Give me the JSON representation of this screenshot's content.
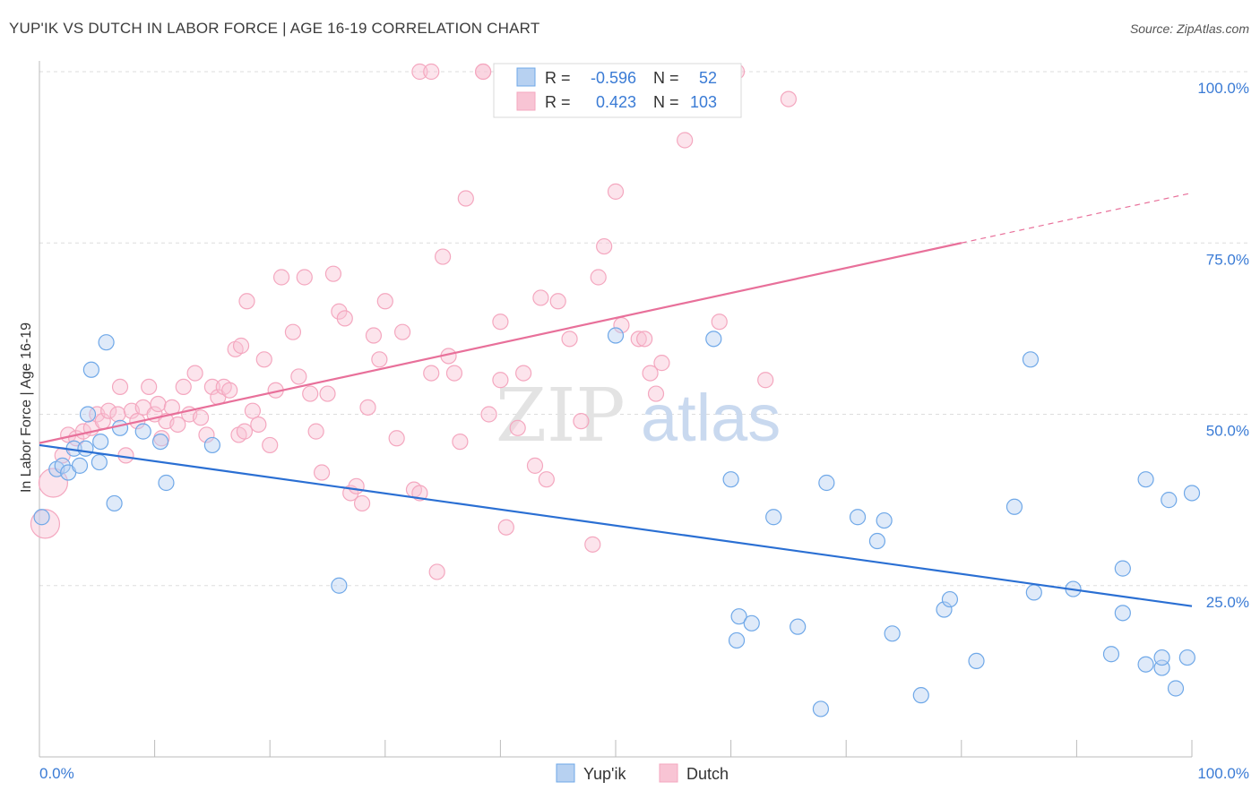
{
  "chart_data": {
    "type": "scatter",
    "title": "YUP'IK VS DUTCH IN LABOR FORCE | AGE 16-19 CORRELATION CHART",
    "source": "Source: ZipAtlas.com",
    "xlabel": "",
    "ylabel": "In Labor Force | Age 16-19",
    "xlim": [
      0,
      100
    ],
    "ylim": [
      0,
      105
    ],
    "x_tick_labels": [
      "0.0%",
      "100.0%"
    ],
    "y_ticks": [
      {
        "value": 100,
        "label": "100.0%"
      },
      {
        "value": 75,
        "label": "75.0%"
      },
      {
        "value": 50,
        "label": "50.0%"
      },
      {
        "value": 25,
        "label": "25.0%"
      }
    ],
    "watermark": {
      "zip": "ZIP",
      "atlas": "atlas"
    },
    "legend_stats": [
      {
        "r_label": "R =",
        "r_value": "-0.596",
        "n_label": "N =",
        "n_value": "52"
      },
      {
        "r_label": "R =",
        "r_value": "0.423",
        "n_label": "N =",
        "n_value": "103"
      }
    ],
    "series": [
      {
        "name": "Yup'ik",
        "color": "#6fa8e8",
        "line_color": "#2a6fd3",
        "trend": {
          "x0": 0,
          "y0": 45.5,
          "x1": 100,
          "y1": 22
        },
        "points": [
          [
            0.2,
            35
          ],
          [
            1.5,
            42
          ],
          [
            2,
            42.5
          ],
          [
            2.5,
            41.5
          ],
          [
            3,
            45
          ],
          [
            3.5,
            42.5
          ],
          [
            4,
            45
          ],
          [
            4.5,
            56.5
          ],
          [
            4.2,
            50
          ],
          [
            5.2,
            43
          ],
          [
            5.3,
            46
          ],
          [
            5.8,
            60.5
          ],
          [
            6.5,
            37
          ],
          [
            7,
            48
          ],
          [
            9,
            47.5
          ],
          [
            10.5,
            46
          ],
          [
            11,
            40
          ],
          [
            15,
            45.5
          ],
          [
            26,
            25
          ],
          [
            50,
            61.5
          ],
          [
            58.5,
            61
          ],
          [
            60,
            40.5
          ],
          [
            60.5,
            17
          ],
          [
            60.7,
            20.5
          ],
          [
            61.8,
            19.5
          ],
          [
            63.7,
            35
          ],
          [
            65.8,
            19
          ],
          [
            67.8,
            7
          ],
          [
            68.3,
            40
          ],
          [
            71,
            35
          ],
          [
            72.7,
            31.5
          ],
          [
            73.3,
            34.5
          ],
          [
            74,
            18
          ],
          [
            76.5,
            9
          ],
          [
            78.5,
            21.5
          ],
          [
            79,
            23
          ],
          [
            81.3,
            14
          ],
          [
            84.6,
            36.5
          ],
          [
            86,
            58
          ],
          [
            86.3,
            24
          ],
          [
            89.7,
            24.5
          ],
          [
            93,
            15
          ],
          [
            94,
            27.5
          ],
          [
            94,
            21
          ],
          [
            96,
            40.5
          ],
          [
            96,
            13.5
          ],
          [
            97.4,
            13
          ],
          [
            97.4,
            14.5
          ],
          [
            98,
            37.5
          ],
          [
            98.6,
            10
          ],
          [
            99.6,
            14.5
          ],
          [
            100,
            38.5
          ]
        ]
      },
      {
        "name": "Dutch",
        "color": "#f4a7bf",
        "line_color": "#e8709a",
        "trend": {
          "x0": 0,
          "y0": 45.8,
          "x1": 80,
          "y1": 75,
          "dash_x1": 100,
          "dash_y1": 82.3
        },
        "points": [
          [
            0.5,
            34
          ],
          [
            1.2,
            40
          ],
          [
            2,
            44
          ],
          [
            2.5,
            47
          ],
          [
            3.2,
            46.5
          ],
          [
            3.8,
            47.5
          ],
          [
            4.5,
            48
          ],
          [
            5,
            50
          ],
          [
            5.5,
            49
          ],
          [
            6,
            50.5
          ],
          [
            6.8,
            50
          ],
          [
            7,
            54
          ],
          [
            7.5,
            44
          ],
          [
            8,
            50.5
          ],
          [
            8.5,
            49
          ],
          [
            9,
            51
          ],
          [
            9.5,
            54
          ],
          [
            10,
            50
          ],
          [
            10.3,
            51.5
          ],
          [
            10.6,
            46.5
          ],
          [
            11,
            49
          ],
          [
            11.5,
            51
          ],
          [
            12,
            48.5
          ],
          [
            12.5,
            54
          ],
          [
            13,
            50
          ],
          [
            13.5,
            56
          ],
          [
            14,
            49.5
          ],
          [
            14.5,
            47
          ],
          [
            15,
            54
          ],
          [
            15.5,
            52.5
          ],
          [
            16,
            54
          ],
          [
            16.5,
            53.5
          ],
          [
            17,
            59.5
          ],
          [
            17.3,
            47
          ],
          [
            17.5,
            60
          ],
          [
            17.8,
            47.5
          ],
          [
            18,
            66.5
          ],
          [
            18.5,
            50.5
          ],
          [
            19,
            48.5
          ],
          [
            19.5,
            58
          ],
          [
            20,
            45.5
          ],
          [
            20.5,
            53.5
          ],
          [
            21,
            70
          ],
          [
            22,
            62
          ],
          [
            22.5,
            55.5
          ],
          [
            23,
            70
          ],
          [
            23.5,
            53
          ],
          [
            24,
            47.5
          ],
          [
            24.5,
            41.5
          ],
          [
            25,
            53
          ],
          [
            25.5,
            70.5
          ],
          [
            26,
            65
          ],
          [
            26.5,
            64
          ],
          [
            27,
            38.5
          ],
          [
            27.5,
            39.5
          ],
          [
            28,
            37
          ],
          [
            28.5,
            51
          ],
          [
            29,
            61.5
          ],
          [
            29.5,
            58
          ],
          [
            30,
            66.5
          ],
          [
            31,
            46.5
          ],
          [
            31.5,
            62
          ],
          [
            32.5,
            39
          ],
          [
            33,
            38.5
          ],
          [
            34,
            56
          ],
          [
            34.5,
            27
          ],
          [
            35,
            73
          ],
          [
            35.5,
            58.5
          ],
          [
            36,
            56
          ],
          [
            36.5,
            46
          ],
          [
            37,
            81.5
          ],
          [
            38.5,
            100
          ],
          [
            39,
            50
          ],
          [
            40,
            63.5
          ],
          [
            40,
            55
          ],
          [
            40.5,
            33.5
          ],
          [
            41.5,
            48
          ],
          [
            42,
            56
          ],
          [
            43,
            42.5
          ],
          [
            43.5,
            67
          ],
          [
            44,
            40.5
          ],
          [
            45,
            66.5
          ],
          [
            46,
            61
          ],
          [
            47,
            49
          ],
          [
            48,
            31
          ],
          [
            48.5,
            70
          ],
          [
            49,
            74.5
          ],
          [
            50,
            82.5
          ],
          [
            50.5,
            63
          ],
          [
            52,
            61
          ],
          [
            52.5,
            61
          ],
          [
            53,
            56
          ],
          [
            53.5,
            53
          ],
          [
            54,
            57.5
          ],
          [
            56,
            90
          ],
          [
            59,
            63.5
          ],
          [
            63,
            55
          ],
          [
            65,
            96
          ]
        ],
        "top_points": [
          [
            33,
            100
          ],
          [
            34,
            100
          ],
          [
            38.5,
            100
          ],
          [
            60.5,
            100
          ]
        ]
      }
    ]
  }
}
